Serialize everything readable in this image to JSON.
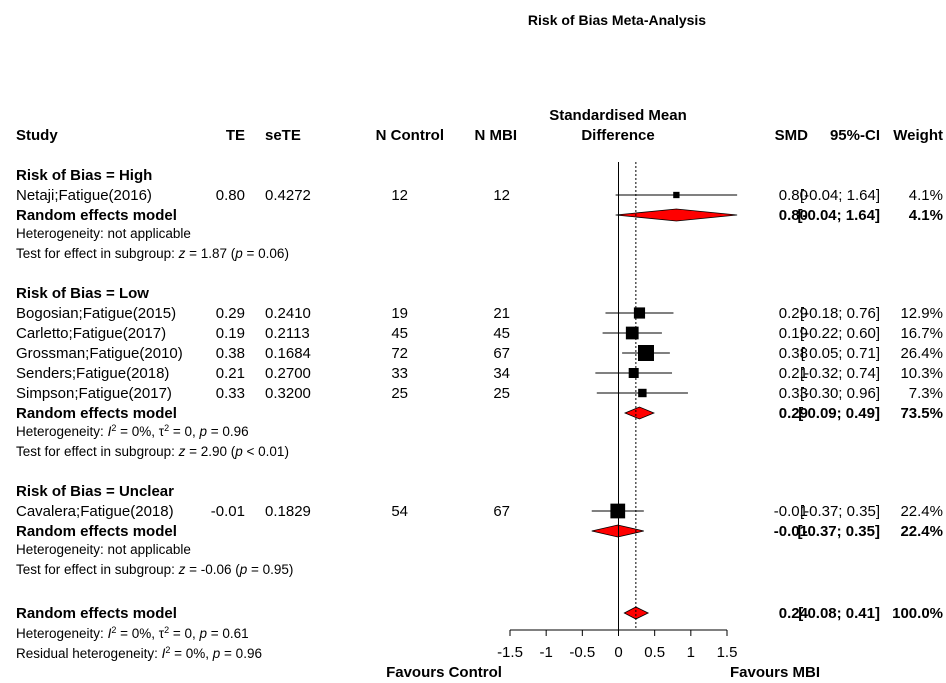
{
  "chart_data": {
    "type": "forest",
    "title": "Risk of Bias Meta-Analysis",
    "columns": {
      "study": "Study",
      "te": "TE",
      "sete": "seTE",
      "n_control": "N Control",
      "n_mbi": "N MBI",
      "plot_header": [
        "Standardised Mean",
        "Difference"
      ],
      "smd": "SMD",
      "ci": "95%-CI",
      "weight": "Weight"
    },
    "xlim": [
      -1.5,
      1.5
    ],
    "xticks": [
      -1.5,
      -1,
      -0.5,
      0,
      0.5,
      1,
      1.5
    ],
    "xtick_labels": [
      "-1.5",
      "-1",
      "-0.5",
      "0",
      "0.5",
      "1",
      "1.5"
    ],
    "favours_left": "Favours Control",
    "favours_right": "Favours MBI",
    "overall_reference": 0.24,
    "groups": [
      {
        "label": "Risk of Bias = High",
        "studies": [
          {
            "name": "Netaji;Fatigue(2016)",
            "te": "0.80",
            "sete": "0.4272",
            "n_control": "12",
            "n_mbi": "12",
            "smd": 0.8,
            "lo": -0.04,
            "hi": 1.64,
            "smd_text": "0.80",
            "ci_text": "[-0.04; 1.64]",
            "weight_text": "4.1%",
            "weight": 4.1
          }
        ],
        "pooled": {
          "label": "Random effects model",
          "smd": 0.8,
          "lo": -0.04,
          "hi": 1.64,
          "smd_text": "0.80",
          "ci_text": "[-0.04; 1.64]",
          "weight_text": "4.1%"
        },
        "heterogeneity": "Heterogeneity: not applicable",
        "test": {
          "prefix": "Test for effect in subgroup: ",
          "z": "z",
          "mid": " = 1.87 (",
          "p": "p",
          "end": " = 0.06)"
        }
      },
      {
        "label": "Risk of Bias = Low",
        "studies": [
          {
            "name": "Bogosian;Fatigue(2015)",
            "te": "0.29",
            "sete": "0.2410",
            "n_control": "19",
            "n_mbi": "21",
            "smd": 0.29,
            "lo": -0.18,
            "hi": 0.76,
            "smd_text": "0.29",
            "ci_text": "[-0.18; 0.76]",
            "weight_text": "12.9%",
            "weight": 12.9
          },
          {
            "name": "Carletto;Fatigue(2017)",
            "te": "0.19",
            "sete": "0.2113",
            "n_control": "45",
            "n_mbi": "45",
            "smd": 0.19,
            "lo": -0.22,
            "hi": 0.6,
            "smd_text": "0.19",
            "ci_text": "[-0.22; 0.60]",
            "weight_text": "16.7%",
            "weight": 16.7
          },
          {
            "name": "Grossman;Fatigue(2010)",
            "te": "0.38",
            "sete": "0.1684",
            "n_control": "72",
            "n_mbi": "67",
            "smd": 0.38,
            "lo": 0.05,
            "hi": 0.71,
            "smd_text": "0.38",
            "ci_text": "[ 0.05; 0.71]",
            "weight_text": "26.4%",
            "weight": 26.4
          },
          {
            "name": "Senders;Fatigue(2018)",
            "te": "0.21",
            "sete": "0.2700",
            "n_control": "33",
            "n_mbi": "34",
            "smd": 0.21,
            "lo": -0.32,
            "hi": 0.74,
            "smd_text": "0.21",
            "ci_text": "[-0.32; 0.74]",
            "weight_text": "10.3%",
            "weight": 10.3
          },
          {
            "name": "Simpson;Fatigue(2017)",
            "te": "0.33",
            "sete": "0.3200",
            "n_control": "25",
            "n_mbi": "25",
            "smd": 0.33,
            "lo": -0.3,
            "hi": 0.96,
            "smd_text": "0.33",
            "ci_text": "[-0.30; 0.96]",
            "weight_text": "7.3%",
            "weight": 7.3
          }
        ],
        "pooled": {
          "label": "Random effects model",
          "smd": 0.29,
          "lo": 0.09,
          "hi": 0.49,
          "smd_text": "0.29",
          "ci_text": "[ 0.09; 0.49]",
          "weight_text": "73.5%"
        },
        "heterogeneity": {
          "prefix": "Heterogeneity: ",
          "i": "I",
          "sup": "2",
          "rest": " = 0%, ",
          "tau": "τ",
          "tau_sup": "2",
          "tau_rest": " = 0, ",
          "p": "p",
          "p_rest": " = 0.96"
        },
        "test": {
          "prefix": "Test for effect in subgroup: ",
          "z": "z",
          "mid": " = 2.90 (",
          "p": "p",
          "end": " < 0.01)"
        }
      },
      {
        "label": "Risk of Bias = Unclear",
        "studies": [
          {
            "name": "Cavalera;Fatigue(2018)",
            "te": "-0.01",
            "sete": "0.1829",
            "n_control": "54",
            "n_mbi": "67",
            "smd": -0.01,
            "lo": -0.37,
            "hi": 0.35,
            "smd_text": "-0.01",
            "ci_text": "[-0.37; 0.35]",
            "weight_text": "22.4%",
            "weight": 22.4
          }
        ],
        "pooled": {
          "label": "Random effects model",
          "smd": -0.01,
          "lo": -0.37,
          "hi": 0.35,
          "smd_text": "-0.01",
          "ci_text": "[-0.37; 0.35]",
          "weight_text": "22.4%"
        },
        "heterogeneity": "Heterogeneity: not applicable",
        "test": {
          "prefix": "Test for effect in subgroup: ",
          "z": "z",
          "mid": " = -0.06 (",
          "p": "p",
          "end": " = 0.95)"
        }
      }
    ],
    "overall": {
      "label": "Random effects model",
      "smd": 0.24,
      "lo": 0.08,
      "hi": 0.41,
      "smd_text": "0.24",
      "ci_text": "[ 0.08; 0.41]",
      "weight_text": "100.0%",
      "heterogeneity": {
        "prefix": "Heterogeneity: ",
        "i": "I",
        "sup": "2",
        "rest": " = 0%, ",
        "tau": "τ",
        "tau_sup": "2",
        "tau_rest": " = 0, ",
        "p": "p",
        "p_rest": " = 0.61"
      },
      "residual": {
        "prefix": "Residual heterogeneity: ",
        "i": "I",
        "sup": "2",
        "rest": " = 0%, ",
        "p": "p",
        "p_rest": " = 0.96"
      }
    },
    "colors": {
      "diamond_fill": "#ff0000",
      "square": "#000000",
      "line": "#000000"
    }
  }
}
